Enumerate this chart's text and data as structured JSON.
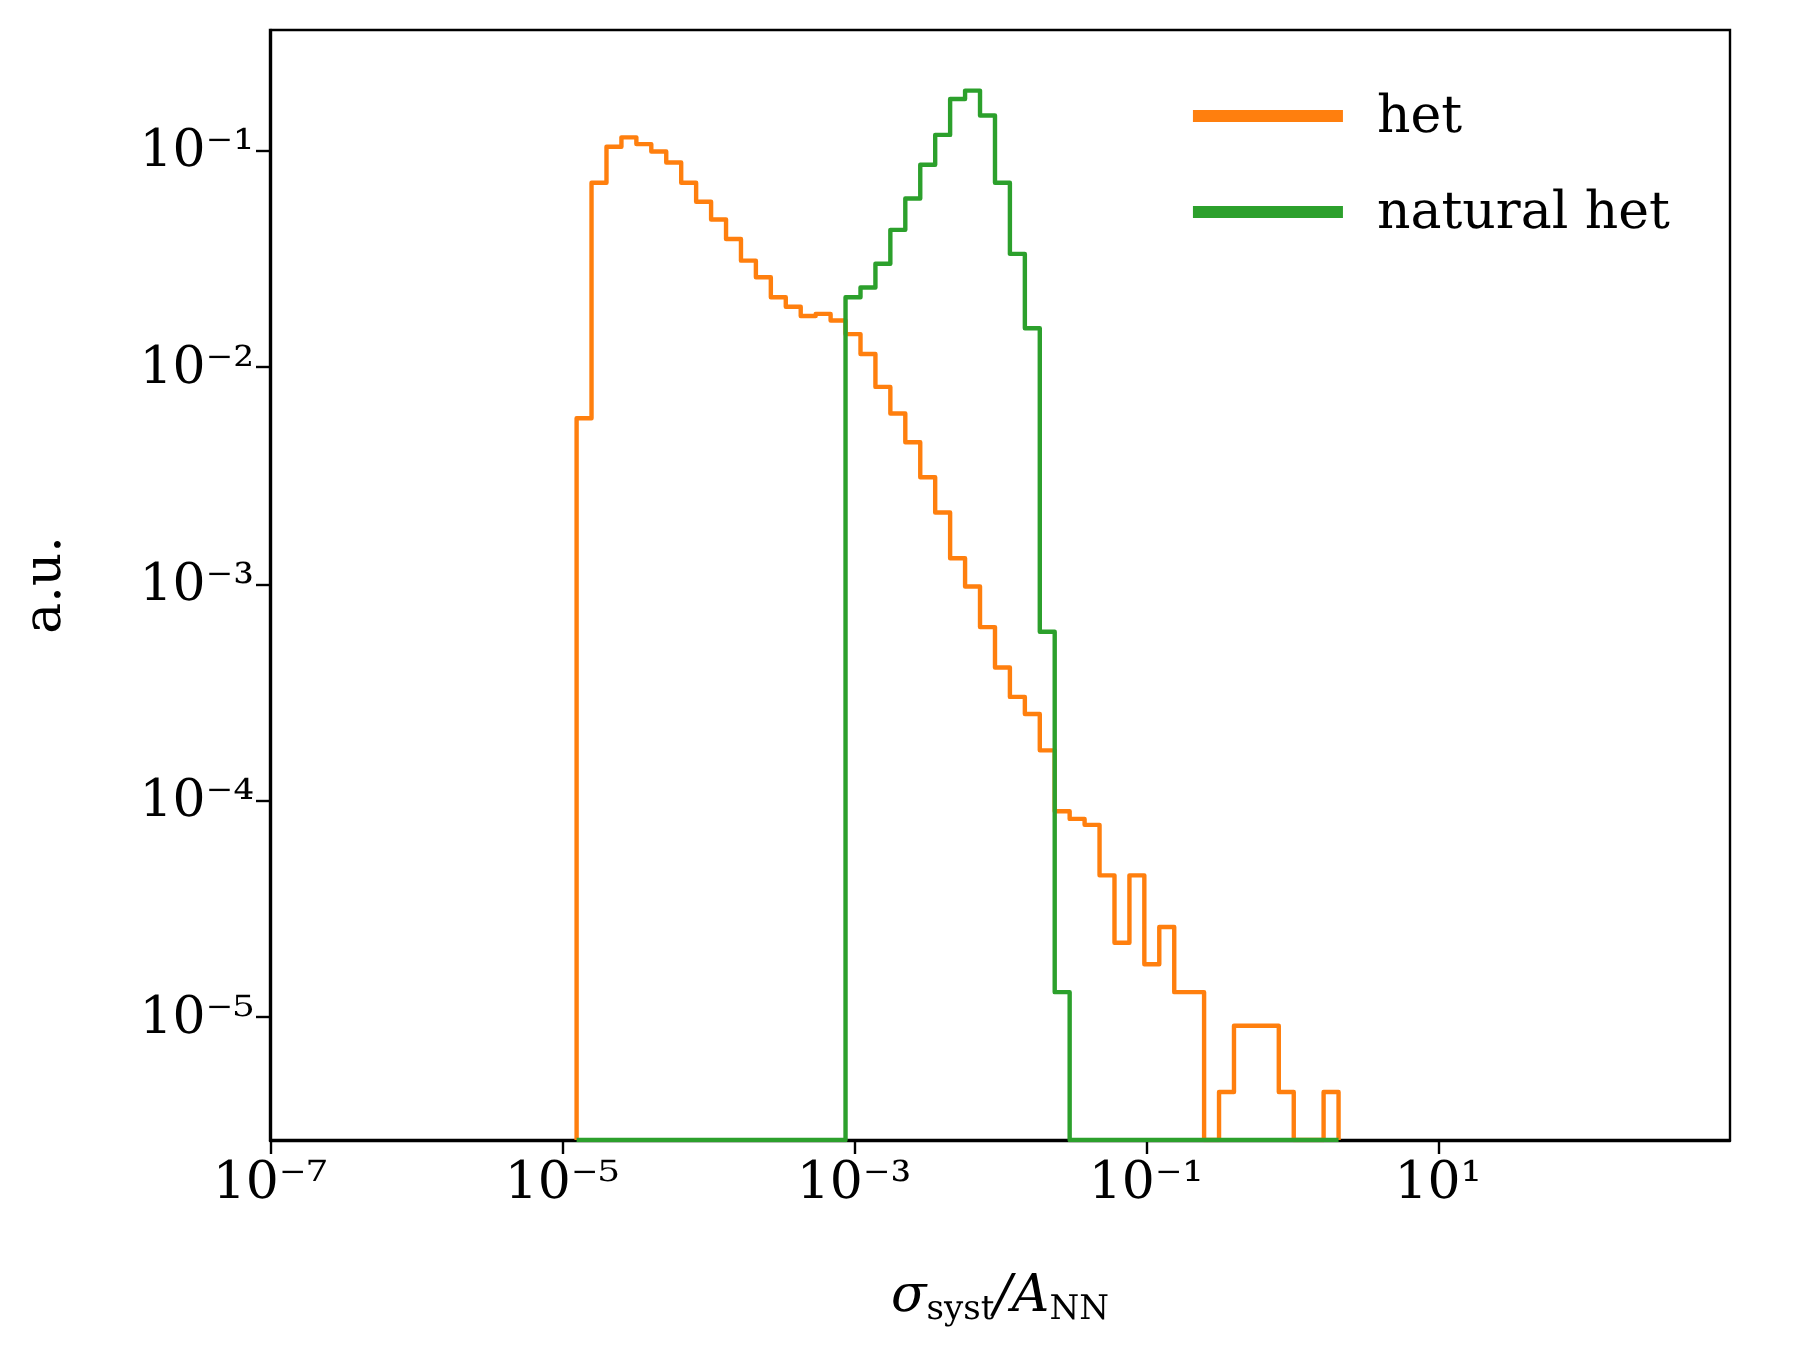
{
  "chart_data": {
    "type": "histogram",
    "xlabel": "σ$_{syst}$/A$_{NN}$",
    "ylabel": "a.u.",
    "log": "xy",
    "grid": false,
    "legend": "top right",
    "line_style": "solid",
    "bins": [
      1.259e-05,
      1.593e-05,
      2.017e-05,
      2.553e-05,
      3.231e-05,
      4.089e-05,
      5.176e-05,
      6.552e-05,
      8.293e-05,
      0.000105,
      0.0001329,
      0.0001682,
      0.0002128,
      0.0002694,
      0.000341,
      0.0004316,
      0.0005463,
      0.0006915,
      0.000875,
      0.001108,
      0.001402,
      0.001774,
      0.002246,
      0.002843,
      0.003598,
      0.004554,
      0.005765,
      0.007297,
      0.00924,
      0.01169,
      0.0148,
      0.01873,
      0.0237,
      0.03,
      0.03797,
      0.04806,
      0.06083,
      0.077,
      0.0974,
      0.1233,
      0.1561,
      0.1975,
      0.25,
      0.3164,
      0.4005,
      0.5069,
      0.6417,
      0.812,
      1.028,
      1.301,
      1.646,
      2.084
    ],
    "series": [
      {
        "name": "het",
        "color": "#ff7f0e",
        "values": [
          0.0058,
          0.071,
          0.104,
          0.115,
          0.107,
          0.099,
          0.088,
          0.071,
          0.058,
          0.048,
          0.039,
          0.031,
          0.026,
          0.021,
          0.019,
          0.0172,
          0.0176,
          0.0164,
          0.0142,
          0.0115,
          0.0081,
          0.0061,
          0.0045,
          0.0031,
          0.00213,
          0.00131,
          0.00097,
          0.00063,
          0.00041,
          0.0003,
          0.00025,
          0.00017,
          8.9e-05,
          8.2e-05,
          7.7e-05,
          4.5e-05,
          2.2e-05,
          4.5e-05,
          1.75e-05,
          2.6e-05,
          1.3e-05,
          1.3e-05,
          null,
          4.5e-06,
          9.1e-06,
          9.1e-06,
          9.1e-06,
          4.5e-06,
          null,
          null,
          4.5e-06
        ]
      },
      {
        "name": "natural het",
        "color": "#2ca02c",
        "values": [
          null,
          null,
          null,
          null,
          null,
          null,
          null,
          null,
          null,
          null,
          null,
          null,
          null,
          null,
          null,
          null,
          null,
          null,
          0.021,
          0.0233,
          0.03,
          0.043,
          0.06,
          0.086,
          0.118,
          0.173,
          0.189,
          0.145,
          0.071,
          0.0333,
          0.0151,
          0.0006,
          1.3e-05,
          null,
          null,
          null,
          null,
          null,
          null,
          null,
          null,
          null,
          null,
          null,
          null,
          null,
          null,
          null,
          null,
          null,
          null
        ]
      }
    ],
    "xlim": [
      1e-07,
      1000
    ],
    "ylim": [
      2.7e-06,
      0.36
    ],
    "xticks": [
      {
        "value": 1e-07,
        "label": "10⁻⁷"
      },
      {
        "value": 1e-05,
        "label": "10⁻⁵"
      },
      {
        "value": 0.001,
        "label": "10⁻³"
      },
      {
        "value": 0.1,
        "label": "10⁻¹"
      },
      {
        "value": 10,
        "label": "10¹"
      }
    ],
    "yticks": [
      {
        "value": 1e-05,
        "label": "10⁻⁵"
      },
      {
        "value": 0.0001,
        "label": "10⁻⁴"
      },
      {
        "value": 0.001,
        "label": "10⁻³"
      },
      {
        "value": 0.01,
        "label": "10⁻²"
      },
      {
        "value": 0.1,
        "label": "10⁻¹"
      }
    ]
  }
}
